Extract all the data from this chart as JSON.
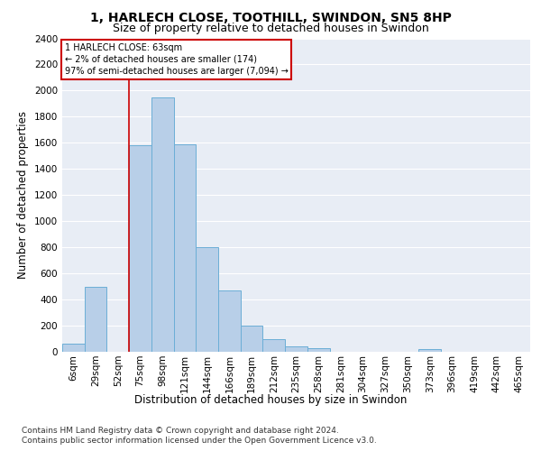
{
  "title": "1, HARLECH CLOSE, TOOTHILL, SWINDON, SN5 8HP",
  "subtitle": "Size of property relative to detached houses in Swindon",
  "xlabel": "Distribution of detached houses by size in Swindon",
  "ylabel": "Number of detached properties",
  "categories": [
    "6sqm",
    "29sqm",
    "52sqm",
    "75sqm",
    "98sqm",
    "121sqm",
    "144sqm",
    "166sqm",
    "189sqm",
    "212sqm",
    "235sqm",
    "258sqm",
    "281sqm",
    "304sqm",
    "327sqm",
    "350sqm",
    "373sqm",
    "396sqm",
    "419sqm",
    "442sqm",
    "465sqm"
  ],
  "values": [
    60,
    500,
    0,
    1580,
    1950,
    1590,
    800,
    470,
    200,
    95,
    40,
    30,
    0,
    0,
    0,
    0,
    20,
    0,
    0,
    0,
    0
  ],
  "bar_color": "#b8cfe8",
  "bar_edge_color": "#6baed6",
  "ylim": [
    0,
    2400
  ],
  "yticks": [
    0,
    200,
    400,
    600,
    800,
    1000,
    1200,
    1400,
    1600,
    1800,
    2000,
    2200,
    2400
  ],
  "vline_x": 2.5,
  "vline_color": "#cc0000",
  "annotation_text": "1 HARLECH CLOSE: 63sqm\n← 2% of detached houses are smaller (174)\n97% of semi-detached houses are larger (7,094) →",
  "annotation_box_color": "#ffffff",
  "annotation_box_edge_color": "#cc0000",
  "footer_line1": "Contains HM Land Registry data © Crown copyright and database right 2024.",
  "footer_line2": "Contains public sector information licensed under the Open Government Licence v3.0.",
  "plot_bg_color": "#e8edf5",
  "title_fontsize": 10,
  "subtitle_fontsize": 9,
  "axis_label_fontsize": 8.5,
  "tick_fontsize": 7.5,
  "footer_fontsize": 6.5
}
